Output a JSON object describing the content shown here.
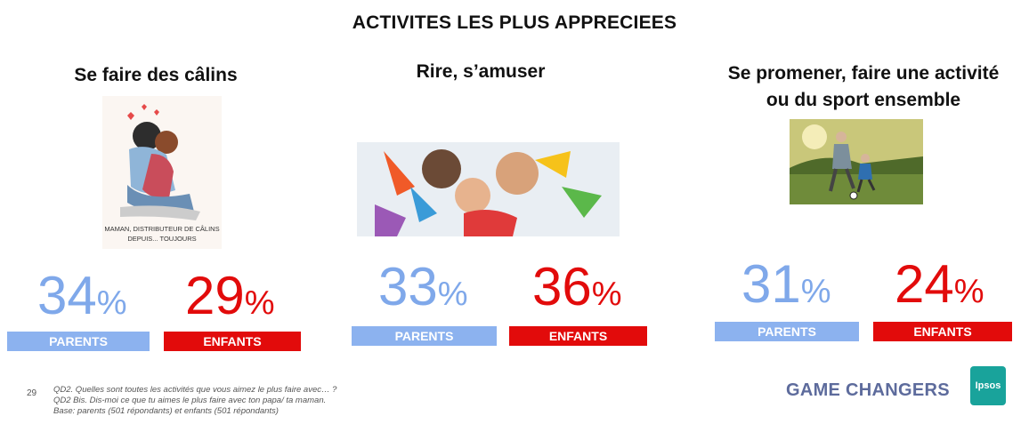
{
  "title": "ACTIVITES LES PLUS APPRECIEES",
  "columns": [
    {
      "heading_lines": [
        "Se faire des câlins"
      ],
      "image_caption_lines": [
        "MAMAN, DISTRIBUTEUR DE CÂLINS",
        "DEPUIS... TOUJOURS"
      ],
      "parents_value": "34",
      "enfants_value": "29",
      "percent_symbol": "%",
      "parents_label": "PARENTS",
      "enfants_label": "ENFANTS"
    },
    {
      "heading_lines": [
        "Rire, s’amuser"
      ],
      "parents_value": "33",
      "enfants_value": "36",
      "percent_symbol": "%",
      "parents_label": "PARENTS",
      "enfants_label": "ENFANTS"
    },
    {
      "heading_lines": [
        "Se promener, faire une activité",
        "ou du sport ensemble"
      ],
      "parents_value": "31",
      "enfants_value": "24",
      "percent_symbol": "%",
      "parents_label": "PARENTS",
      "enfants_label": "ENFANTS"
    }
  ],
  "footer": {
    "page_number": "29",
    "notes": [
      "QD2. Quelles sont toutes les activités que vous aimez le plus faire avec… ?",
      "QD2 Bis. Dis-moi ce que tu aimes le plus faire avec ton papa/ ta maman.",
      "Base: parents (501 répondants) et enfants (501 répondants)"
    ],
    "brand_text": "GAME CHANGERS",
    "logo_text": "Ipsos"
  },
  "colors": {
    "parents": "#8cb2ef",
    "enfants": "#e20b0b",
    "brand": "#5d6b9c",
    "logo": "#19a39b"
  }
}
